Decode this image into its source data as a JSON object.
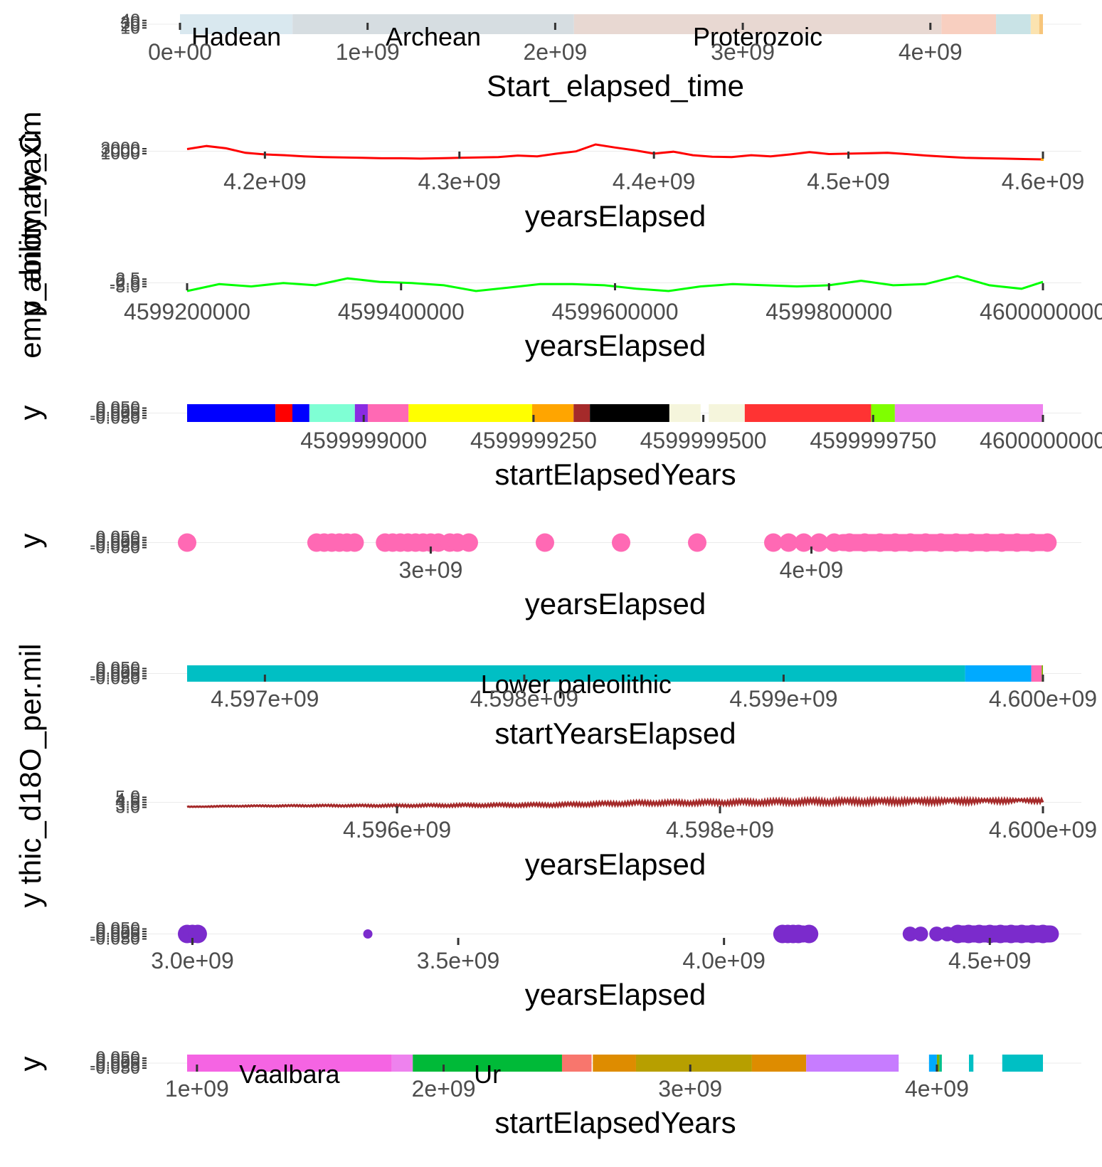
{
  "figure": {
    "left_labels": [
      {
        "id": "lbl-a",
        "text": "y ability_maxim"
      },
      {
        "id": "lbl-b",
        "text": "emp_anomaly_C"
      },
      {
        "id": "lbl-c",
        "text": "y"
      },
      {
        "id": "lbl-d",
        "text": "y"
      },
      {
        "id": "lbl-e",
        "text": "y thic_d18O_per.mil"
      },
      {
        "id": "lbl-f",
        "text": "y"
      }
    ]
  },
  "chart_data": [
    {
      "type": "bar",
      "subtype": "timeline-bands",
      "title": "",
      "xlabel": "Start_elapsed_time",
      "ylabel": "",
      "xlim": [
        0,
        4600000000
      ],
      "xticks": [
        0,
        1000000000,
        2000000000,
        3000000000,
        4000000000
      ],
      "xtick_labels": [
        "0e+00",
        "1e+09",
        "2e+09",
        "3e+09",
        "4e+09"
      ],
      "yticks_overlapping": [
        "40",
        "30",
        "20",
        "10"
      ],
      "bands": [
        {
          "label": "Hadean",
          "start": 0,
          "end": 600000000,
          "color": "#d9e8ef"
        },
        {
          "label": "Archean",
          "start": 600000000,
          "end": 2100000000,
          "color": "#d6dde1"
        },
        {
          "label": "Proterozoic",
          "start": 2100000000,
          "end": 4059000000,
          "color": "#e8d8d2"
        },
        {
          "label": "",
          "start": 4059000000,
          "end": 4350000000,
          "color": "#f8cfc0"
        },
        {
          "label": "",
          "start": 4350000000,
          "end": 4535000000,
          "color": "#c9e3e6"
        },
        {
          "label": "",
          "start": 4535000000,
          "end": 4580000000,
          "color": "#fbe3b0"
        },
        {
          "label": "",
          "start": 4580000000,
          "end": 4600000000,
          "color": "#f7c57a"
        }
      ]
    },
    {
      "type": "line",
      "title": "",
      "xlabel": "yearsElapsed",
      "ylabel": "",
      "xlim": [
        4160000000,
        4600000000
      ],
      "xticks": [
        4200000000,
        4300000000,
        4400000000,
        4500000000,
        4600000000
      ],
      "xtick_labels": [
        "4.2e+09",
        "4.3e+09",
        "4.4e+09",
        "4.5e+09",
        "4.6e+09"
      ],
      "yticks_overlapping": [
        "3000",
        "2000",
        "1000"
      ],
      "series": [
        {
          "color": "#ff0000",
          "x": [
            4160000000,
            4170000000,
            4180000000,
            4190000000,
            4200000000,
            4210000000,
            4220000000,
            4230000000,
            4240000000,
            4250000000,
            4260000000,
            4270000000,
            4280000000,
            4290000000,
            4300000000,
            4310000000,
            4320000000,
            4330000000,
            4340000000,
            4350000000,
            4360000000,
            4370000000,
            4380000000,
            4390000000,
            4400000000,
            4410000000,
            4420000000,
            4430000000,
            4440000000,
            4450000000,
            4460000000,
            4470000000,
            4480000000,
            4490000000,
            4500000000,
            4510000000,
            4520000000,
            4530000000,
            4540000000,
            4550000000,
            4560000000,
            4570000000,
            4580000000,
            4590000000,
            4600000000
          ],
          "values": [
            2300,
            2700,
            2400,
            1800,
            1600,
            1500,
            1350,
            1250,
            1200,
            1150,
            1100,
            1100,
            1050,
            1100,
            1150,
            1200,
            1250,
            1450,
            1350,
            1700,
            2000,
            2900,
            2500,
            2150,
            1700,
            1950,
            1500,
            1300,
            1250,
            1500,
            1350,
            1600,
            1900,
            1650,
            1700,
            1750,
            1800,
            1650,
            1450,
            1300,
            1150,
            1100,
            1050,
            1000,
            950
          ]
        }
      ]
    },
    {
      "type": "line",
      "title": "",
      "xlabel": "yearsElapsed",
      "ylabel": "",
      "xlim": [
        4599200000,
        4600000000
      ],
      "xticks": [
        4599200000,
        4599400000,
        4599600000,
        4599800000,
        4600000000
      ],
      "xtick_labels": [
        "4599200000",
        "4599400000",
        "4599600000",
        "4599800000",
        "4600000000"
      ],
      "yticks_overlapping": [
        "2.5",
        "0.0",
        "-2.5",
        "-5.0"
      ],
      "series": [
        {
          "color": "#00ff00",
          "x": [
            4599200000,
            4599230000,
            4599260000,
            4599290000,
            4599320000,
            4599350000,
            4599380000,
            4599410000,
            4599440000,
            4599470000,
            4599500000,
            4599530000,
            4599560000,
            4599590000,
            4599620000,
            4599650000,
            4599680000,
            4599710000,
            4599740000,
            4599770000,
            4599800000,
            4599830000,
            4599860000,
            4599890000,
            4599920000,
            4599950000,
            4599980000,
            4600000000
          ],
          "values": [
            -4.5,
            -1.5,
            -2.5,
            -1.0,
            -2.0,
            1.0,
            -0.5,
            -1.0,
            -2.0,
            -4.5,
            -3.0,
            -1.5,
            -1.5,
            -2.0,
            -3.5,
            -4.5,
            -2.5,
            -1.5,
            -2.0,
            -2.5,
            -2.0,
            0.0,
            -2.0,
            -1.5,
            2.0,
            -2.0,
            -3.5,
            -0.5
          ]
        }
      ]
    },
    {
      "type": "bar",
      "subtype": "timeline-bands",
      "title": "",
      "xlabel": "startElapsedYears",
      "ylabel": "",
      "xlim": [
        4599998740,
        4600000000
      ],
      "xticks": [
        4599999000,
        4599999250,
        4599999500,
        4599999750,
        4600000000
      ],
      "xtick_labels": [
        "4599999000",
        "4599999250",
        "4599999500",
        "4599999750",
        "4600000000"
      ],
      "yticks_overlapping": [
        "0.050",
        "0.025",
        "0.000",
        "-0.025",
        "-0.050"
      ],
      "bands": [
        {
          "start": 4599998740,
          "end": 4599998870,
          "color": "#0000ff"
        },
        {
          "start": 4599998870,
          "end": 4599998895,
          "color": "#ff0000"
        },
        {
          "start": 4599998895,
          "end": 4599998920,
          "color": "#0000ff"
        },
        {
          "start": 4599998920,
          "end": 4599998987,
          "color": "#7fffd4"
        },
        {
          "start": 4599998987,
          "end": 4599999006,
          "color": "#8a2be2"
        },
        {
          "start": 4599999006,
          "end": 4599999066,
          "color": "#ff69b4"
        },
        {
          "start": 4599999066,
          "end": 4599999248,
          "color": "#ffff00"
        },
        {
          "start": 4599999248,
          "end": 4599999309,
          "color": "#ffa500"
        },
        {
          "start": 4599999309,
          "end": 4599999333,
          "color": "#a52a2a"
        },
        {
          "start": 4599999333,
          "end": 4599999450,
          "color": "#000000"
        },
        {
          "start": 4599999450,
          "end": 4599999496,
          "color": "#f5f5dc"
        },
        {
          "start": 4599999508,
          "end": 4599999561,
          "color": "#f5f5dc"
        },
        {
          "start": 4599999561,
          "end": 4599999747,
          "color": "#ff3333"
        },
        {
          "start": 4599999747,
          "end": 4599999782,
          "color": "#7fff00"
        },
        {
          "start": 4599999782,
          "end": 4600000000,
          "color": "#ee82ee"
        }
      ]
    },
    {
      "type": "scatter",
      "title": "",
      "xlabel": "yearsElapsed",
      "ylabel": "",
      "xlim": [
        2360000000,
        4640000000
      ],
      "xticks": [
        3000000000,
        4000000000
      ],
      "xtick_labels": [
        "3e+09",
        "4e+09"
      ],
      "yticks_overlapping": [
        "0.050",
        "0.025",
        "0.000",
        "-0.025",
        "-0.050"
      ],
      "series": [
        {
          "color": "#ff69b4",
          "x": [
            2360000000,
            2700000000,
            2720000000,
            2740000000,
            2760000000,
            2780000000,
            2800000000,
            2880000000,
            2900000000,
            2920000000,
            2940000000,
            2960000000,
            2980000000,
            3000000000,
            3020000000,
            3050000000,
            3070000000,
            3100000000,
            3300000000,
            3500000000,
            3700000000,
            3900000000,
            3940000000,
            3980000000,
            4020000000,
            4060000000,
            4100000000,
            4140000000,
            4180000000,
            4220000000,
            4260000000,
            4300000000,
            4340000000,
            4380000000,
            4420000000,
            4460000000,
            4500000000,
            4540000000,
            4580000000,
            4620000000
          ],
          "values": [
            0,
            0,
            0,
            0,
            0,
            0,
            0,
            0,
            0,
            0,
            0,
            0,
            0,
            0,
            0,
            0,
            0,
            0,
            0,
            0,
            0,
            0,
            0,
            0,
            0,
            0,
            0,
            0,
            0,
            0,
            0,
            0,
            0,
            0,
            0,
            0,
            0,
            0,
            0,
            0
          ]
        }
      ]
    },
    {
      "type": "bar",
      "subtype": "timeline-bands",
      "title": "",
      "xlabel": "startYearsElapsed",
      "ylabel": "",
      "xlim": [
        4596700000,
        4600000000
      ],
      "xticks": [
        4597000000,
        4598000000,
        4599000000,
        4600000000
      ],
      "xtick_labels": [
        "4.597e+09",
        "4.598e+09",
        "4.599e+09",
        "4.600e+09"
      ],
      "yticks_overlapping": [
        "0.050",
        "0.025",
        "0.000",
        "-0.025",
        "-0.050"
      ],
      "bands": [
        {
          "label": "Lower paleolithic",
          "start": 4596700000,
          "end": 4599700000,
          "color": "#00bfc4"
        },
        {
          "label": "",
          "start": 4599700000,
          "end": 4599955000,
          "color": "#00aaff"
        },
        {
          "label": "",
          "start": 4599955000,
          "end": 4599995000,
          "color": "#ff69b4"
        },
        {
          "label": "",
          "start": 4599995000,
          "end": 4600000000,
          "color": "#7cae00"
        }
      ]
    },
    {
      "type": "line",
      "title": "",
      "xlabel": "yearsElapsed",
      "ylabel": "",
      "xlim": [
        4594700000,
        4600000000
      ],
      "xticks": [
        4596000000,
        4598000000,
        4600000000
      ],
      "xtick_labels": [
        "4.596e+09",
        "4.598e+09",
        "4.600e+09"
      ],
      "yticks_overlapping": [
        "5.0",
        "4.5",
        "4.0",
        "3.5",
        "3.0"
      ],
      "series": [
        {
          "color": "#a52a2a",
          "noise": true,
          "x": [
            4594700000,
            4595000000,
            4595500000,
            4596000000,
            4596500000,
            4597000000,
            4597500000,
            4598000000,
            4598500000,
            4599000000,
            4599500000,
            4599800000,
            4600000000
          ],
          "values": [
            3.1,
            3.2,
            3.25,
            3.25,
            3.3,
            3.35,
            3.55,
            3.6,
            3.7,
            3.75,
            3.85,
            3.95,
            4.0
          ]
        }
      ]
    },
    {
      "type": "scatter",
      "title": "",
      "xlabel": "yearsElapsed",
      "ylabel": "",
      "xlim": [
        2990000000,
        4600000000
      ],
      "xticks": [
        3000000000,
        3500000000,
        4000000000,
        4500000000
      ],
      "xtick_labels": [
        "3.0e+09",
        "3.5e+09",
        "4.0e+09",
        "4.5e+09"
      ],
      "yticks_overlapping": [
        "0.050",
        "0.025",
        "0.000",
        "-0.025",
        "-0.050"
      ],
      "series": [
        {
          "color": "#7b2bcc",
          "x": [
            2990000000,
            3000000000,
            3010000000,
            3330000000,
            4110000000,
            4120000000,
            4130000000,
            4140000000,
            4160000000,
            4350000000,
            4370000000,
            4400000000,
            4420000000,
            4440000000,
            4460000000,
            4480000000,
            4500000000,
            4520000000,
            4540000000,
            4560000000,
            4580000000,
            4600000000
          ],
          "sizes": [
            1,
            1,
            1,
            0.5,
            1,
            1,
            1,
            1,
            1,
            0.8,
            0.8,
            0.8,
            0.8,
            1,
            1,
            1,
            1,
            1,
            1,
            1,
            1,
            1
          ],
          "values": [
            0,
            0,
            0,
            0,
            0,
            0,
            0,
            0,
            0,
            0,
            0,
            0,
            0,
            0,
            0,
            0,
            0,
            0,
            0,
            0,
            0,
            0
          ]
        }
      ]
    },
    {
      "type": "bar",
      "subtype": "timeline-bands",
      "title": "",
      "xlabel": "startElapsedYears",
      "ylabel": "",
      "xlim": [
        960000000,
        4430000000
      ],
      "xticks": [
        1000000000,
        2000000000,
        3000000000,
        4000000000
      ],
      "xtick_labels": [
        "1e+09",
        "2e+09",
        "3e+09",
        "4e+09"
      ],
      "yticks_overlapping": [
        "0.050",
        "0.025",
        "0.000",
        "-0.025",
        "-0.050"
      ],
      "bands": [
        {
          "label": "Vaalbara",
          "start": 960000000,
          "end": 1790000000,
          "color": "#f564e3"
        },
        {
          "label": "",
          "start": 1790000000,
          "end": 1875000000,
          "color": "#ee82ee"
        },
        {
          "label": "Ur",
          "start": 1875000000,
          "end": 2480000000,
          "color": "#00ba38"
        },
        {
          "label": "",
          "start": 2480000000,
          "end": 2600000000,
          "color": "#f8766d"
        },
        {
          "label": "",
          "start": 2605000000,
          "end": 2780000000,
          "color": "#de8c00"
        },
        {
          "label": "",
          "start": 2780000000,
          "end": 3250000000,
          "color": "#b79f00"
        },
        {
          "label": "",
          "start": 3250000000,
          "end": 3470000000,
          "color": "#de8c00"
        },
        {
          "label": "",
          "start": 3470000000,
          "end": 3845000000,
          "color": "#c77cff"
        },
        {
          "label": "",
          "start": 3968000000,
          "end": 4000000000,
          "color": "#00a9ff"
        },
        {
          "label": "",
          "start": 4000000000,
          "end": 4010000000,
          "color": "#7cae00"
        },
        {
          "label": "",
          "start": 4010000000,
          "end": 4020000000,
          "color": "#00c08b"
        },
        {
          "label": "",
          "start": 4130000000,
          "end": 4148000000,
          "color": "#00bfc4"
        },
        {
          "label": "",
          "start": 4265000000,
          "end": 4430000000,
          "color": "#00bfc4"
        }
      ]
    }
  ]
}
